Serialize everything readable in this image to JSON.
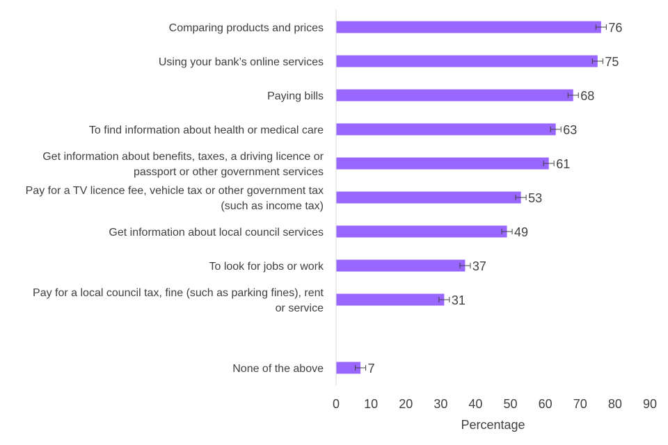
{
  "chart_data": {
    "type": "bar",
    "orientation": "horizontal",
    "categories": [
      [
        "Comparing products and prices"
      ],
      [
        "Using your bank’s online services"
      ],
      [
        "Paying bills"
      ],
      [
        "To find information about health or medical care"
      ],
      [
        "Get information about benefits, taxes, a driving licence or",
        "passport or other government services"
      ],
      [
        "Pay for a TV licence fee, vehicle tax or other government tax",
        "(such as income tax)"
      ],
      [
        "Get information about local council services"
      ],
      [
        "To look for jobs or work"
      ],
      [
        "Pay for a local council tax, fine (such as parking fines), rent",
        "or service"
      ],
      [],
      [
        "None of the above"
      ]
    ],
    "values": [
      76,
      75,
      68,
      63,
      61,
      53,
      49,
      37,
      31,
      null,
      7
    ],
    "value_labels": [
      "76",
      "75",
      "68",
      "63",
      "61",
      "53",
      "49",
      "37",
      "31",
      "",
      "7"
    ],
    "error_margin": [
      1.5,
      1.5,
      1.5,
      1.5,
      1.5,
      1.5,
      1.5,
      1.5,
      1.5,
      null,
      1.5
    ],
    "xlabel": "Percentage",
    "xlim": [
      0,
      90
    ],
    "xticks": [
      "0",
      "10",
      "20",
      "30",
      "40",
      "50",
      "60",
      "70",
      "80",
      "90"
    ],
    "bar_color": "#9966FF",
    "axis_color": "#d9d9d9",
    "error_bar_color": "#404040",
    "grid": false,
    "legend": "none"
  }
}
